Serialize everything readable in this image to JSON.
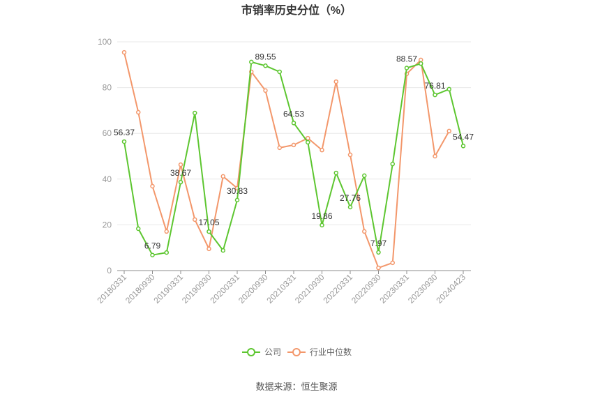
{
  "source": "数据来源：恒生聚源",
  "colors": {
    "company": "#5dc630",
    "industry": "#f3976b",
    "grid": "#e8e8e8",
    "axis": "#8c8c8c",
    "tick_text": "#999999"
  },
  "chart_data": {
    "type": "line",
    "title": "市销率历史分位（%）",
    "xlabel": "",
    "ylabel": "",
    "ylim": [
      0,
      100
    ],
    "yticks": [
      0,
      20,
      40,
      60,
      80,
      100
    ],
    "grid": true,
    "legend_position": "bottom",
    "categories": [
      "20180331",
      "",
      "20180930",
      "",
      "20190331",
      "",
      "20190930",
      "",
      "20200331",
      "",
      "20200930",
      "",
      "20210331",
      "",
      "20210930",
      "",
      "20220331",
      "",
      "20220930",
      "",
      "20230331",
      "",
      "20230930",
      "",
      "20240423"
    ],
    "series": [
      {
        "name": "公司",
        "values": [
          56.37,
          18.3,
          6.79,
          7.9,
          38.67,
          68.9,
          17.05,
          8.8,
          30.83,
          91.2,
          89.55,
          86.9,
          64.53,
          56.1,
          19.86,
          42.7,
          27.76,
          41.5,
          7.97,
          46.6,
          88.57,
          90.5,
          76.81,
          79.3,
          54.47
        ],
        "data_labels": [
          "56.37",
          null,
          "6.79",
          null,
          "38.67",
          null,
          "17.05",
          null,
          "30.83",
          null,
          "89.55",
          null,
          "64.53",
          null,
          "19.86",
          null,
          "27.76",
          null,
          "7.97",
          null,
          "88.57",
          null,
          "76.81",
          null,
          "54.47"
        ]
      },
      {
        "name": "行业中位数",
        "values": [
          95.4,
          69.2,
          36.9,
          17.1,
          46.3,
          22.3,
          9.5,
          41.2,
          36.0,
          86.9,
          78.7,
          53.7,
          54.9,
          57.9,
          52.7,
          82.6,
          50.6,
          17.1,
          1.2,
          3.4,
          86.0,
          92.1,
          50.0,
          61.0,
          null
        ]
      }
    ]
  }
}
